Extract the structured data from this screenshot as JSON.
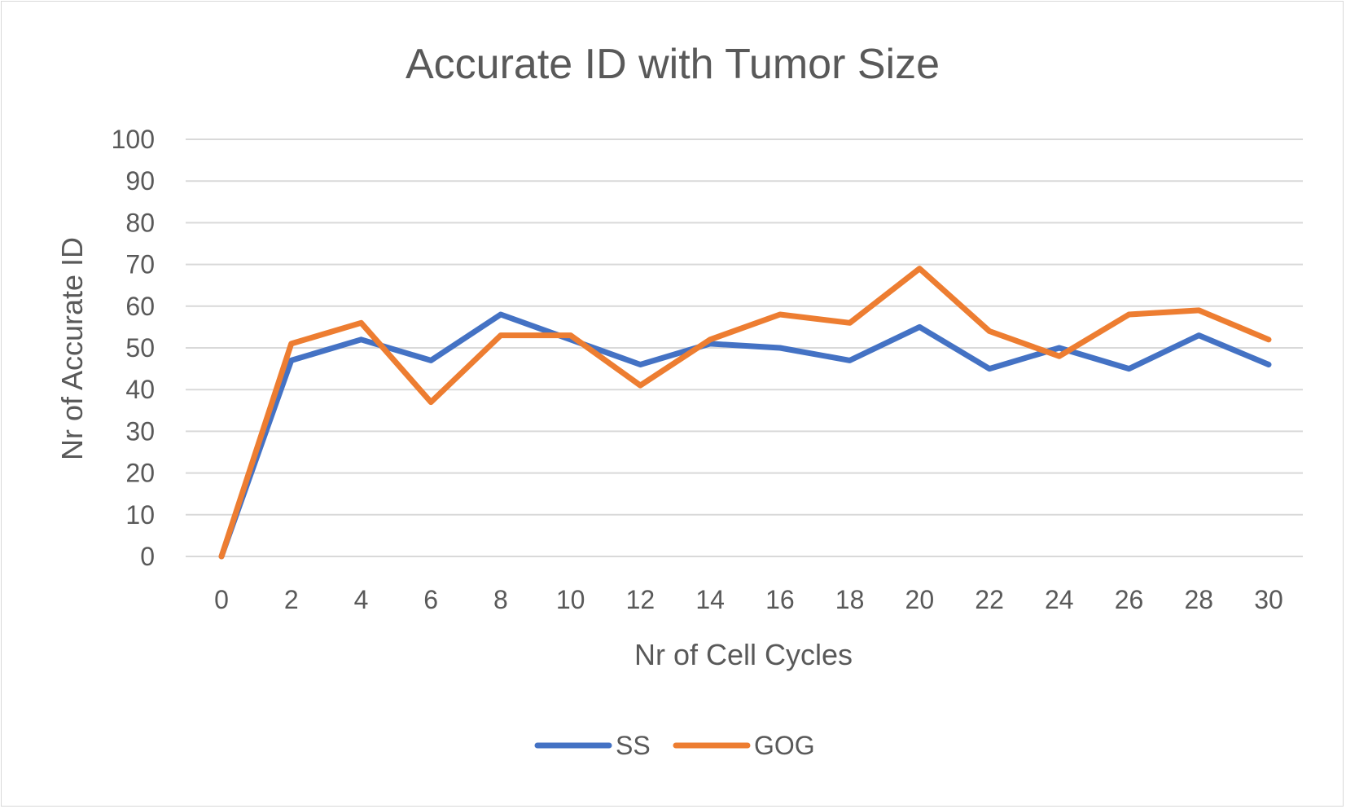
{
  "chart_data": {
    "type": "line",
    "title": "Accurate ID with Tumor Size",
    "xlabel": "Nr of Cell Cycles",
    "ylabel": "Nr of Accurate ID",
    "x": [
      0,
      2,
      4,
      6,
      8,
      10,
      12,
      14,
      16,
      18,
      20,
      22,
      24,
      26,
      28,
      30
    ],
    "x_tick_labels": [
      "0",
      "2",
      "4",
      "6",
      "8",
      "10",
      "12",
      "14",
      "16",
      "18",
      "20",
      "22",
      "24",
      "26",
      "28",
      "30"
    ],
    "ylim": [
      0,
      100
    ],
    "y_ticks": [
      0,
      10,
      20,
      30,
      40,
      50,
      60,
      70,
      80,
      90,
      100
    ],
    "grid": true,
    "legend_position": "bottom",
    "series": [
      {
        "name": "SS",
        "color": "#4472C4",
        "values": [
          0,
          47,
          52,
          47,
          58,
          52,
          46,
          51,
          50,
          47,
          55,
          45,
          50,
          45,
          53,
          46
        ]
      },
      {
        "name": "GOG",
        "color": "#ED7D31",
        "values": [
          0,
          51,
          56,
          37,
          53,
          53,
          41,
          52,
          58,
          56,
          69,
          54,
          48,
          58,
          59,
          52
        ]
      }
    ]
  }
}
